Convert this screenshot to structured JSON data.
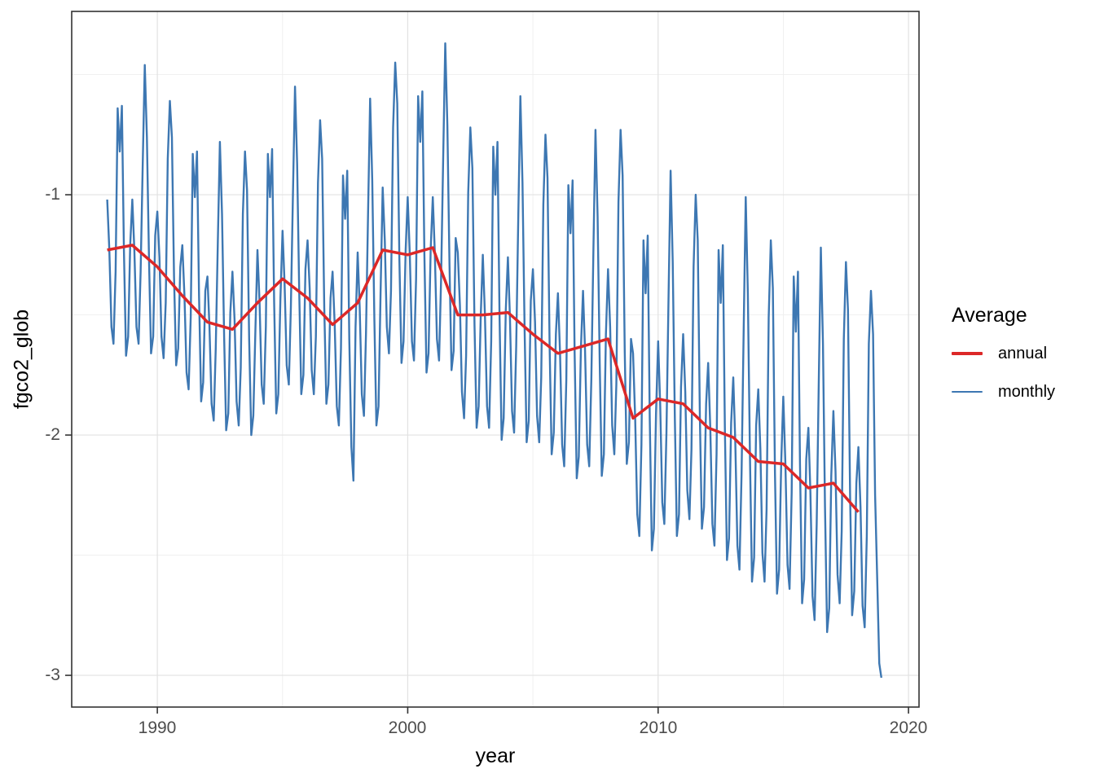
{
  "chart_data": {
    "type": "line",
    "title": "",
    "xlabel": "year",
    "ylabel": "fgco2_glob",
    "grid": "on",
    "x_axis": {
      "range": [
        1986.58,
        2020.42
      ],
      "ticks": [
        1990,
        2000,
        2010,
        2020
      ],
      "tick_labels": [
        "1990",
        "2000",
        "2010",
        "2020"
      ],
      "minor_ticks": [
        1995,
        2005,
        2015
      ]
    },
    "y_axis": {
      "range": [
        -3.132,
        -0.237
      ],
      "ticks": [
        -1,
        -2,
        -3
      ],
      "tick_labels": [
        "-1",
        "-2",
        "-3"
      ],
      "minor_ticks": [
        -0.5,
        -1.5,
        -2.5
      ]
    },
    "legend": {
      "title": "Average",
      "position": "right",
      "entries": [
        {
          "label": "annual",
          "color": "#dc2828",
          "stroke_width": 3.5
        },
        {
          "label": "monthly",
          "color": "#3d77b2",
          "stroke_width": 2.4
        }
      ]
    },
    "series": [
      {
        "name": "monthly",
        "color": "#3d77b2",
        "stroke_width": 2.4,
        "start_year": 1988,
        "points_per_year": 12,
        "values_by_year": [
          [
            -1.02,
            -1.23,
            -1.55,
            -1.62,
            -1.32,
            -0.64,
            -0.82,
            -0.63,
            -1.23,
            -1.67,
            -1.59,
            -1.21
          ],
          [
            -1.02,
            -1.23,
            -1.55,
            -1.62,
            -1.32,
            -0.87,
            -0.46,
            -0.76,
            -1.27,
            -1.66,
            -1.59,
            -1.17
          ],
          [
            -1.07,
            -1.26,
            -1.59,
            -1.68,
            -1.45,
            -0.85,
            -0.61,
            -0.76,
            -1.34,
            -1.71,
            -1.64,
            -1.3
          ],
          [
            -1.21,
            -1.42,
            -1.74,
            -1.81,
            -1.51,
            -0.83,
            -1.01,
            -0.82,
            -1.42,
            -1.86,
            -1.78,
            -1.4
          ],
          [
            -1.34,
            -1.55,
            -1.87,
            -1.94,
            -1.64,
            -1.19,
            -0.78,
            -1.08,
            -1.59,
            -1.98,
            -1.91,
            -1.49
          ],
          [
            -1.32,
            -1.52,
            -1.86,
            -1.96,
            -1.72,
            -1.08,
            -0.82,
            -0.98,
            -1.6,
            -2.0,
            -1.92,
            -1.56
          ],
          [
            -1.23,
            -1.45,
            -1.79,
            -1.87,
            -1.55,
            -0.83,
            -1.01,
            -0.81,
            -1.45,
            -1.91,
            -1.83,
            -1.43
          ],
          [
            -1.15,
            -1.37,
            -1.71,
            -1.79,
            -1.47,
            -0.99,
            -0.55,
            -0.87,
            -1.41,
            -1.83,
            -1.75,
            -1.31
          ],
          [
            -1.19,
            -1.39,
            -1.73,
            -1.83,
            -1.59,
            -0.95,
            -0.69,
            -0.85,
            -1.47,
            -1.87,
            -1.79,
            -1.43
          ],
          [
            -1.32,
            -1.54,
            -1.88,
            -1.96,
            -1.64,
            -0.92,
            -1.1,
            -0.9,
            -1.6,
            -2.05,
            -2.19,
            -1.55
          ],
          [
            -1.24,
            -1.47,
            -1.83,
            -1.92,
            -1.58,
            -1.07,
            -0.6,
            -0.94,
            -1.52,
            -1.96,
            -1.88,
            -1.41
          ],
          [
            -0.97,
            -1.19,
            -1.55,
            -1.66,
            -1.4,
            -0.72,
            -0.45,
            -0.62,
            -1.27,
            -1.7,
            -1.61,
            -1.23
          ],
          [
            -1.01,
            -1.25,
            -1.61,
            -1.69,
            -1.35,
            -0.59,
            -0.78,
            -0.57,
            -1.25,
            -1.74,
            -1.66,
            -1.23
          ],
          [
            -1.01,
            -1.24,
            -1.6,
            -1.69,
            -1.35,
            -0.84,
            -0.37,
            -0.71,
            -1.29,
            -1.73,
            -1.65,
            -1.18
          ],
          [
            -1.24,
            -1.46,
            -1.82,
            -1.93,
            -1.67,
            -0.99,
            -0.72,
            -0.89,
            -1.54,
            -1.97,
            -1.88,
            -1.5
          ],
          [
            -1.25,
            -1.5,
            -1.88,
            -1.97,
            -1.61,
            -0.8,
            -1.0,
            -0.78,
            -1.5,
            -2.02,
            -1.93,
            -1.48
          ],
          [
            -1.26,
            -1.51,
            -1.9,
            -1.99,
            -1.63,
            -1.08,
            -0.59,
            -0.95,
            -1.56,
            -2.03,
            -1.94,
            -1.44
          ],
          [
            -1.31,
            -1.53,
            -1.92,
            -2.03,
            -1.76,
            -1.04,
            -0.75,
            -0.93,
            -1.63,
            -2.08,
            -1.99,
            -1.58
          ],
          [
            -1.41,
            -1.66,
            -2.04,
            -2.13,
            -1.77,
            -0.96,
            -1.16,
            -0.94,
            -1.66,
            -2.18,
            -2.09,
            -1.64
          ],
          [
            -1.4,
            -1.65,
            -2.04,
            -2.13,
            -1.77,
            -1.22,
            -0.73,
            -1.09,
            -1.7,
            -2.17,
            -2.08,
            -1.58
          ],
          [
            -1.31,
            -1.55,
            -1.96,
            -2.08,
            -1.79,
            -1.03,
            -0.73,
            -0.92,
            -1.65,
            -2.12,
            -2.03,
            -1.6
          ],
          [
            -1.66,
            -1.93,
            -2.33,
            -2.42,
            -2.04,
            -1.19,
            -1.41,
            -1.17,
            -1.93,
            -2.48,
            -2.39,
            -1.91
          ],
          [
            -1.61,
            -1.87,
            -2.28,
            -2.37,
            -1.99,
            -1.42,
            -0.9,
            -1.28,
            -1.93,
            -2.42,
            -2.33,
            -1.8
          ],
          [
            -1.58,
            -1.82,
            -2.23,
            -2.35,
            -2.06,
            -1.3,
            -1.0,
            -1.19,
            -1.92,
            -2.39,
            -2.3,
            -1.87
          ],
          [
            -1.7,
            -1.97,
            -2.37,
            -2.46,
            -2.08,
            -1.23,
            -1.45,
            -1.21,
            -1.97,
            -2.52,
            -2.43,
            -1.95
          ],
          [
            -1.76,
            -2.03,
            -2.46,
            -2.56,
            -2.16,
            -1.56,
            -1.01,
            -1.41,
            -2.09,
            -2.61,
            -2.51,
            -1.96
          ],
          [
            -1.81,
            -2.06,
            -2.49,
            -2.61,
            -2.31,
            -1.51,
            -1.19,
            -1.39,
            -2.16,
            -2.66,
            -2.56,
            -2.11
          ],
          [
            -1.84,
            -2.12,
            -2.54,
            -2.64,
            -2.24,
            -1.34,
            -1.57,
            -1.32,
            -2.12,
            -2.7,
            -2.6,
            -2.1
          ],
          [
            -1.97,
            -2.24,
            -2.67,
            -2.77,
            -2.37,
            -1.77,
            -1.22,
            -1.62,
            -2.3,
            -2.82,
            -2.72,
            -2.17
          ],
          [
            -1.9,
            -2.15,
            -2.58,
            -2.7,
            -2.4,
            -1.6,
            -1.28,
            -1.48,
            -2.25,
            -2.75,
            -2.65,
            -2.2
          ],
          [
            -2.05,
            -2.3,
            -2.71,
            -2.8,
            -2.42,
            -1.62,
            -1.4,
            -1.58,
            -2.25,
            -2.6,
            -2.95,
            -3.01
          ]
        ]
      },
      {
        "name": "annual",
        "color": "#dc2828",
        "stroke_width": 3.5,
        "x_start": 1988,
        "x_step": 1,
        "values": [
          -1.23,
          -1.21,
          -1.3,
          -1.42,
          -1.53,
          -1.56,
          -1.45,
          -1.35,
          -1.43,
          -1.54,
          -1.45,
          -1.23,
          -1.25,
          -1.22,
          -1.5,
          -1.5,
          -1.49,
          -1.58,
          -1.66,
          -1.63,
          -1.6,
          -1.93,
          -1.85,
          -1.87,
          -1.97,
          -2.01,
          -2.11,
          -2.12,
          -2.22,
          -2.2,
          -2.32
        ]
      }
    ],
    "style": {
      "background": "#ffffff",
      "panel_background": "#ffffff",
      "panel_border": "#333333",
      "grid_major": "#e2e2e2",
      "grid_minor": "#eeeeee",
      "tick_color": "#333333",
      "tick_label_color": "#4d4d4d",
      "axis_title_color": "#000000",
      "legend_text_color": "#000000"
    }
  }
}
